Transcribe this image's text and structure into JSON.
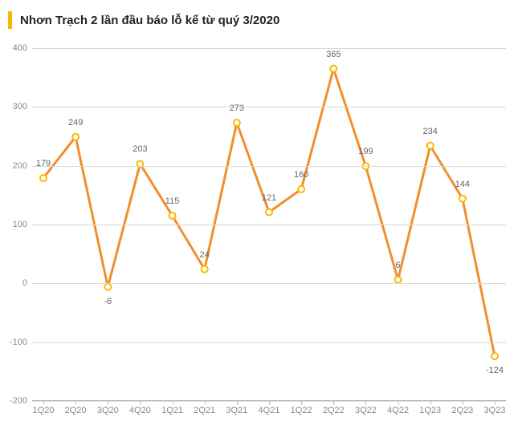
{
  "title": "Nhơn Trạch 2 lần đầu báo lỗ kể từ quý 3/2020",
  "accent_color": "#f9b900",
  "chart": {
    "type": "line",
    "categories": [
      "1Q20",
      "2Q20",
      "3Q20",
      "4Q20",
      "1Q21",
      "2Q21",
      "3Q21",
      "4Q21",
      "1Q22",
      "2Q22",
      "3Q22",
      "4Q22",
      "1Q23",
      "2Q23",
      "3Q23"
    ],
    "values": [
      179,
      249,
      -6,
      203,
      115,
      24,
      273,
      121,
      160,
      365,
      199,
      6,
      234,
      144,
      -124
    ],
    "line_color": "#f28e2b",
    "line_width": 3,
    "marker_stroke": "#f9b900",
    "marker_fill": "#ffffff",
    "marker_radius": 4,
    "marker_stroke_width": 2,
    "ylim": [
      -200,
      400
    ],
    "ytick_step": 100,
    "grid_color": "#d9d9d9",
    "axis_color": "#bdbdbd",
    "background_color": "#ffffff",
    "tick_fontsize": 11,
    "tick_color": "#888888",
    "label_fontsize": 11,
    "label_color": "#666666",
    "title_fontsize": 15,
    "title_color": "#222222",
    "yticks": [
      -200,
      -100,
      0,
      100,
      200,
      300,
      400
    ],
    "tick_marks_on_x": true,
    "tick_mark_color": "#bdbdbd",
    "tick_mark_height": 5
  }
}
